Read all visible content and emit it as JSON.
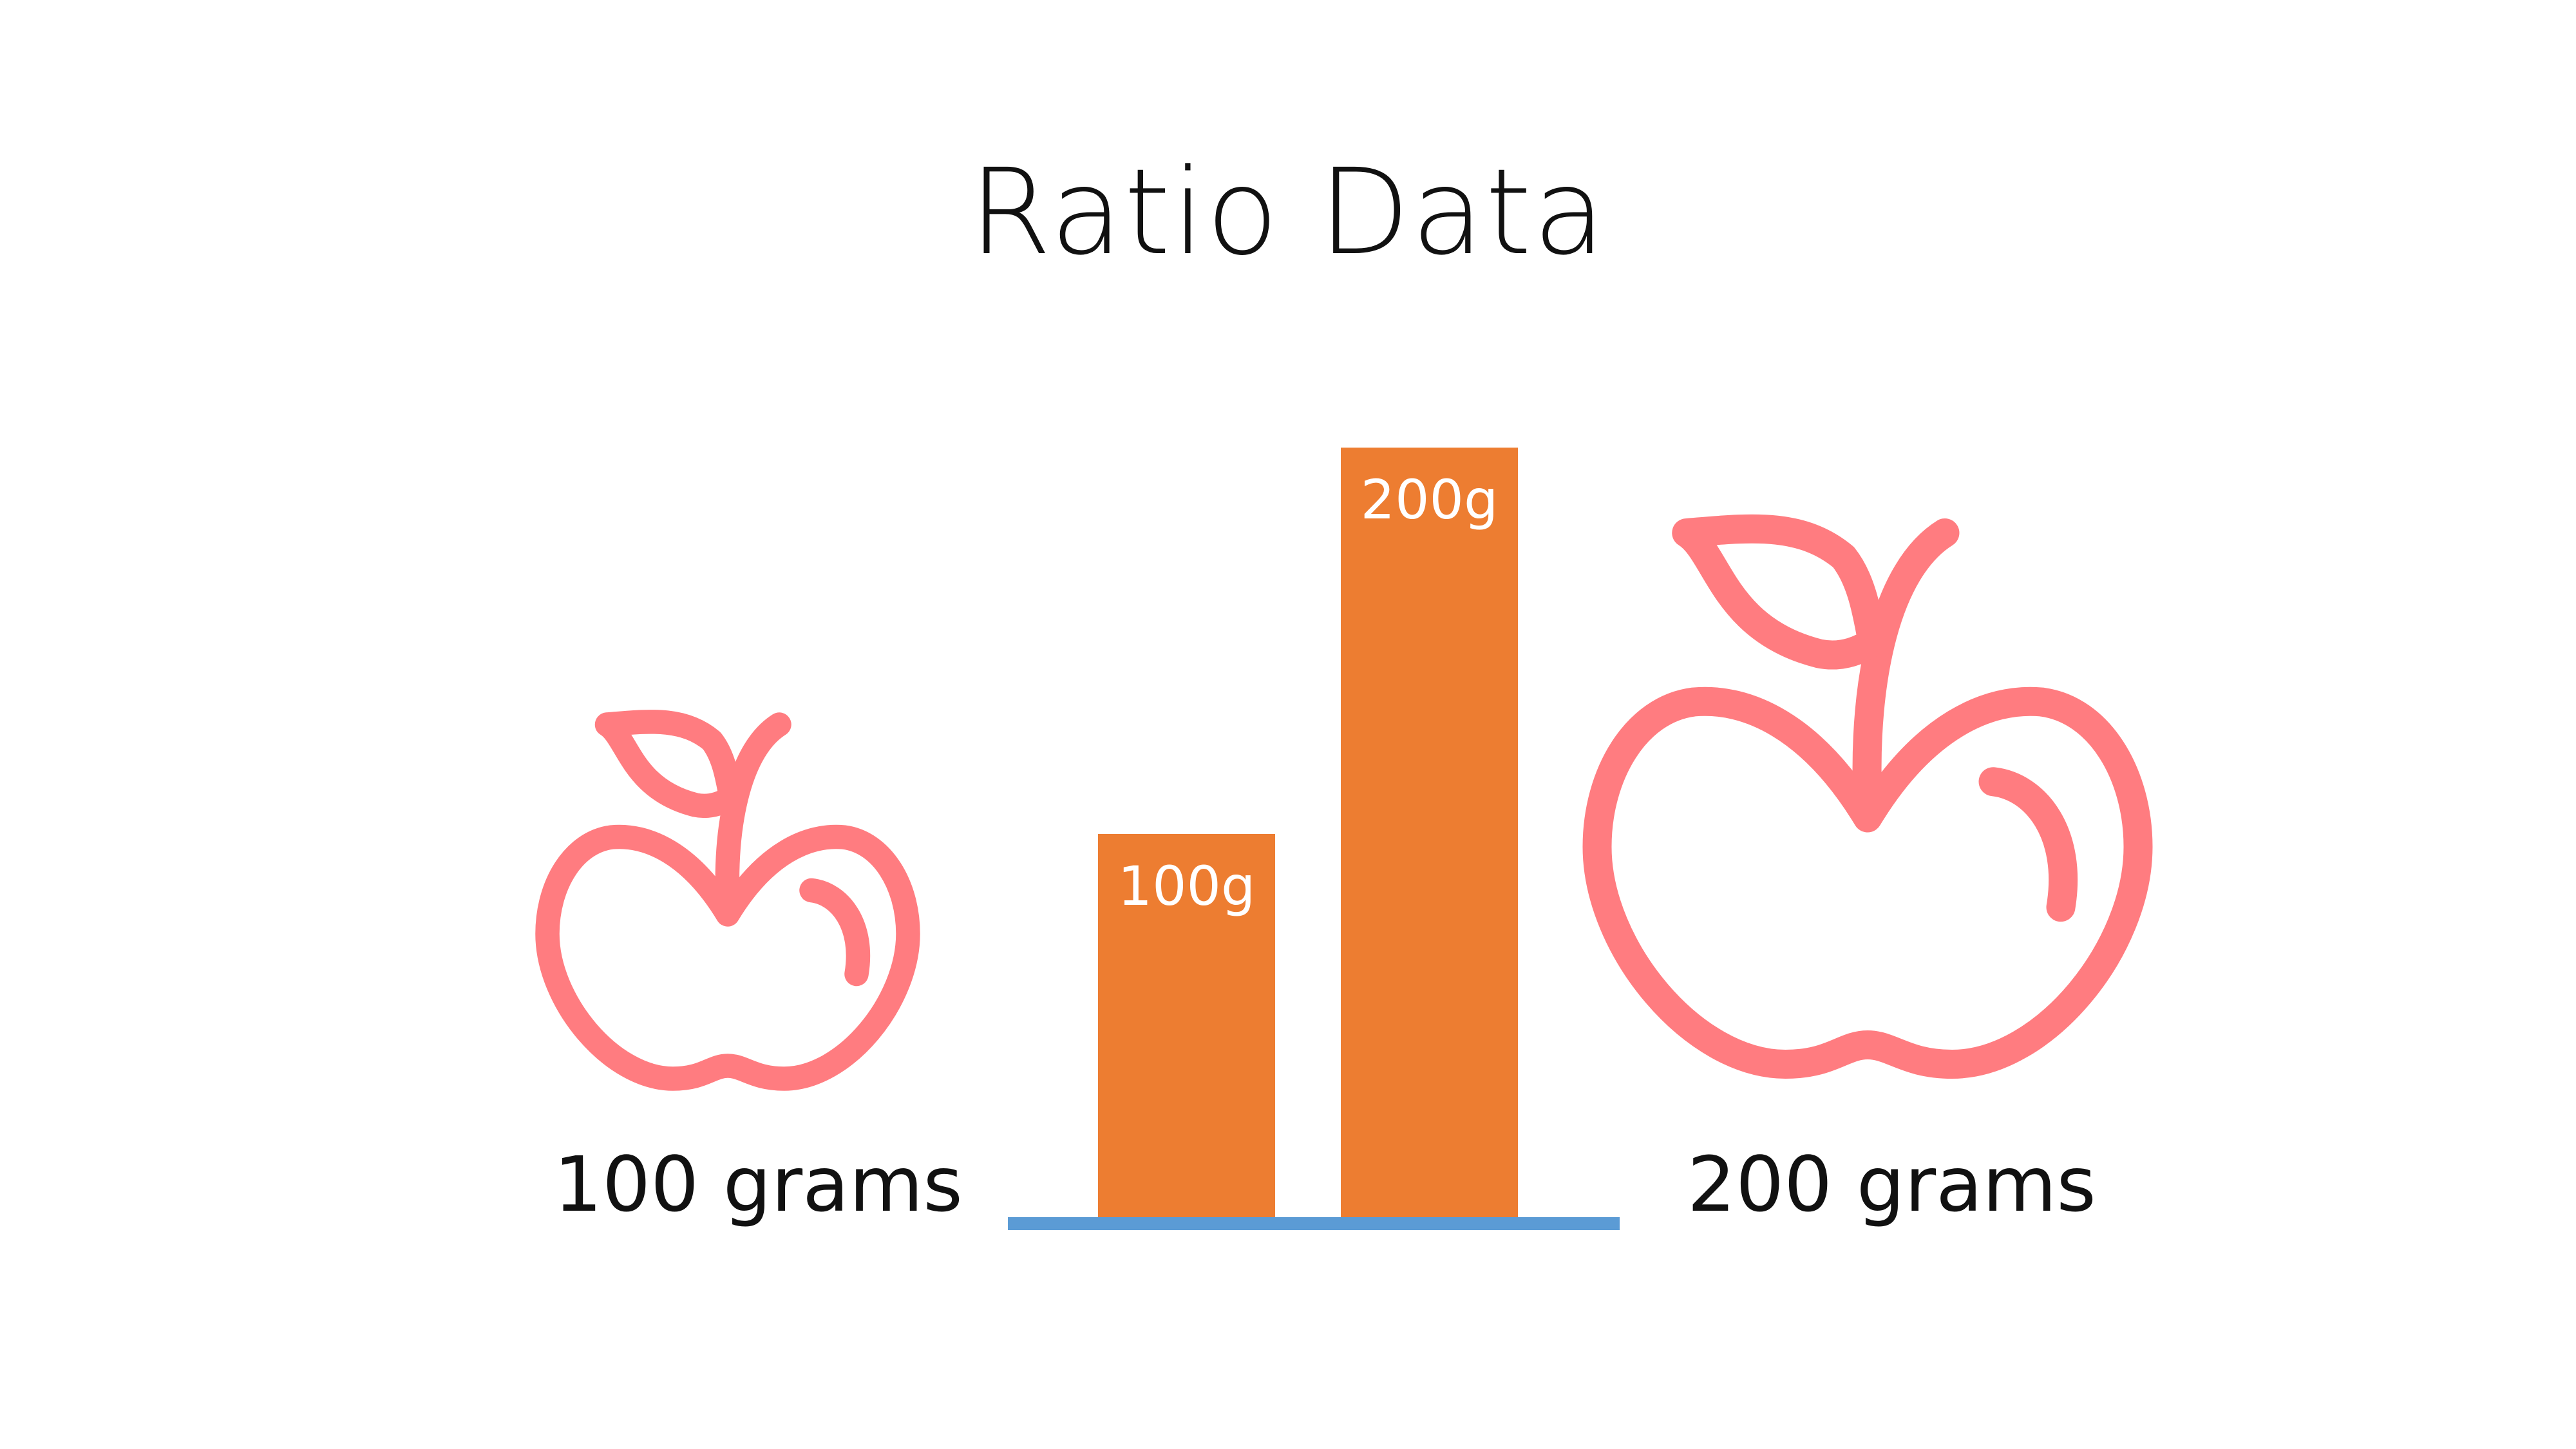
{
  "slide": {
    "title": "Ratio Data"
  },
  "left_item": {
    "icon": "apple-icon",
    "label": "100 grams"
  },
  "right_item": {
    "icon": "apple-icon",
    "label": "200 grams"
  },
  "colors": {
    "apple_outline": "#FF7C80",
    "bar_fill": "#ED7D31",
    "baseline": "#5B9BD5",
    "bar_label": "#FFFFFF"
  },
  "chart_data": {
    "type": "bar",
    "categories": [
      "",
      ""
    ],
    "values": [
      100,
      200
    ],
    "data_labels": [
      "100g",
      "200g"
    ],
    "ylim": [
      0,
      200
    ],
    "grid": false,
    "legend": "none",
    "axes_labels": false
  }
}
